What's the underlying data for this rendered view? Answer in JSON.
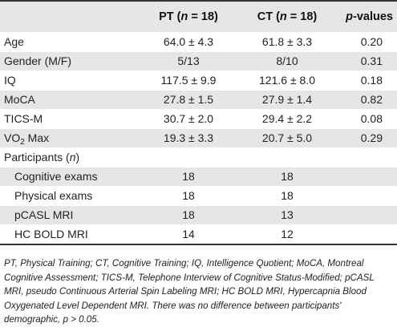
{
  "header": {
    "pt_label": "PT (",
    "pt_n": "n",
    "pt_rest": " = 18)",
    "ct_label": "CT (",
    "ct_n": "n",
    "ct_rest": " = 18)",
    "p_label": "p",
    "p_rest": "-values"
  },
  "rows": [
    {
      "label": "Age",
      "pt": "64.0 ± 4.3",
      "ct": "61.8 ± 3.3",
      "p": "0.20"
    },
    {
      "label": "Gender (M/F)",
      "pt": "5/13",
      "ct": "8/10",
      "p": "0.31"
    },
    {
      "label": "IQ",
      "pt": "117.5 ± 9.9",
      "ct": "121.6 ± 8.0",
      "p": "0.18"
    },
    {
      "label": "MoCA",
      "pt": "27.8 ± 1.5",
      "ct": "27.9 ± 1.4",
      "p": "0.82"
    },
    {
      "label": "TICS-M",
      "pt": "30.7 ± 2.0",
      "ct": "29.4 ± 2.2",
      "p": "0.08"
    },
    {
      "label_main": "VO",
      "label_sub": "2",
      "label_rest": " Max",
      "pt": "19.3 ± 3.3",
      "ct": "20.7 ± 5.0",
      "p": "0.29"
    },
    {
      "label_main": "Participants (",
      "label_n": "n",
      "label_rest": ")"
    },
    {
      "label": "Cognitive exams",
      "pt": "18",
      "ct": "18"
    },
    {
      "label": "Physical exams",
      "pt": "18",
      "ct": "18"
    },
    {
      "label": "pCASL MRI",
      "pt": "18",
      "ct": "13"
    },
    {
      "label": "HC BOLD MRI",
      "pt": "14",
      "ct": "12"
    }
  ],
  "footnote": "PT, Physical Training; CT, Cognitive Training; IQ, Intelligence Quotient; MoCA, Montreal Cognitive Assessment; TICS-M, Telephone Interview of Cognitive Status-Modified; pCASL MRI, pseudo Continuous Arterial Spin Labeling MRI; HC BOLD MRI, Hypercapnia Blood Oxygenated Level Dependent MRI. There was no difference between participants' demographic, p > 0.05."
}
